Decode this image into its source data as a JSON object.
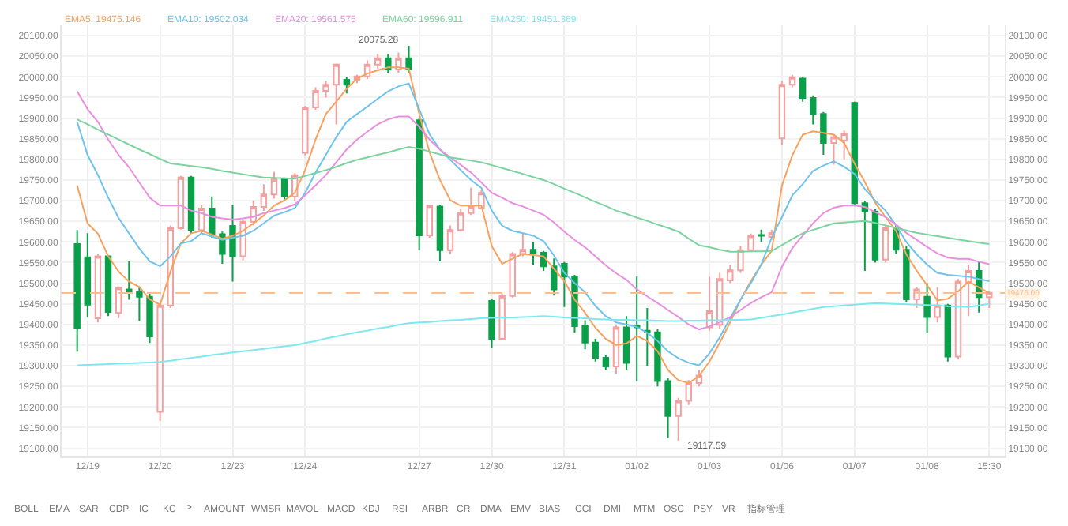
{
  "chart_data": {
    "type": "candlestick",
    "categories": [
      null,
      "12/19",
      null,
      null,
      null,
      null,
      null,
      null,
      "12/20",
      null,
      null,
      null,
      null,
      null,
      null,
      "12/23",
      null,
      null,
      null,
      null,
      null,
      null,
      "12/24",
      null,
      null,
      null,
      null,
      null,
      null,
      null,
      null,
      null,
      null,
      "12/27",
      null,
      null,
      null,
      null,
      null,
      null,
      "12/30",
      null,
      null,
      null,
      null,
      null,
      null,
      "12/31",
      null,
      null,
      null,
      null,
      null,
      null,
      "01/02",
      null,
      null,
      null,
      null,
      null,
      null,
      "01/03",
      null,
      null,
      null,
      null,
      null,
      null,
      "01/06",
      null,
      null,
      null,
      null,
      null,
      null,
      "01/07",
      null,
      null,
      null,
      null,
      null,
      null,
      "01/08",
      null,
      null,
      null,
      null,
      null,
      "15:30"
    ],
    "ohlc": [
      [
        19595,
        19629,
        19334,
        19391
      ],
      [
        19563,
        19621,
        19418,
        19448
      ],
      [
        19415,
        19570,
        19405,
        19565
      ],
      [
        19565,
        19568,
        19420,
        19430
      ],
      [
        19428,
        19492,
        19415,
        19489
      ],
      [
        19485,
        19553,
        19460,
        19477
      ],
      [
        19478,
        19490,
        19408,
        19467
      ],
      [
        19467,
        19475,
        19355,
        19371
      ],
      [
        19188,
        19450,
        19166,
        19446
      ],
      [
        19446,
        19640,
        19440,
        19633
      ],
      [
        19633,
        19760,
        19630,
        19756
      ],
      [
        19756,
        19760,
        19620,
        19629
      ],
      [
        19629,
        19690,
        19620,
        19681
      ],
      [
        19681,
        19710,
        19610,
        19619
      ],
      [
        19619,
        19625,
        19547,
        19571
      ],
      [
        19639,
        19690,
        19504,
        19565
      ],
      [
        19565,
        19655,
        19555,
        19649
      ],
      [
        19649,
        19700,
        19640,
        19685
      ],
      [
        19685,
        19740,
        19675,
        19715
      ],
      [
        19715,
        19770,
        19705,
        19752
      ],
      [
        19752,
        19756,
        19700,
        19710
      ],
      [
        19710,
        19766,
        19700,
        19762
      ],
      [
        19816,
        19930,
        19810,
        19926
      ],
      [
        19926,
        19975,
        19920,
        19966
      ],
      [
        19966,
        19990,
        19950,
        19981
      ],
      [
        19981,
        20032,
        19885,
        20030
      ],
      [
        19993,
        20000,
        19960,
        19981
      ],
      [
        19993,
        20005,
        19985,
        20001
      ],
      [
        20001,
        20040,
        19995,
        20030
      ],
      [
        20030,
        20055,
        20020,
        20045
      ],
      [
        20045,
        20055,
        20010,
        20018
      ],
      [
        20018,
        20059,
        20010,
        20045
      ],
      [
        20045,
        20075.28,
        20010,
        20018
      ],
      [
        19895,
        19900,
        19580,
        19616
      ],
      [
        19616,
        19690,
        19610,
        19688
      ],
      [
        19686,
        19690,
        19553,
        19580
      ],
      [
        19580,
        19640,
        19570,
        19629
      ],
      [
        19629,
        19680,
        19625,
        19670
      ],
      [
        19670,
        19731,
        19665,
        19686
      ],
      [
        19682,
        19725,
        19680,
        19719
      ],
      [
        19457,
        19462,
        19344,
        19365
      ],
      [
        19365,
        19475,
        19362,
        19469
      ],
      [
        19469,
        19575,
        19465,
        19571
      ],
      [
        19571,
        19621,
        19565,
        19581
      ],
      [
        19581,
        19600,
        19545,
        19574
      ],
      [
        19574,
        19578,
        19530,
        19541
      ],
      [
        19541,
        19560,
        19470,
        19485
      ],
      [
        19547,
        19552,
        19442,
        19516
      ],
      [
        19516,
        19520,
        19380,
        19396
      ],
      [
        19396,
        19410,
        19340,
        19356
      ],
      [
        19356,
        19365,
        19310,
        19319
      ],
      [
        19319,
        19325,
        19290,
        19298
      ],
      [
        19298,
        19400,
        19280,
        19393
      ],
      [
        19393,
        19420,
        19290,
        19307
      ],
      [
        19396,
        19516,
        19263,
        19393
      ],
      [
        19385,
        19440,
        19300,
        19381
      ],
      [
        19381,
        19388,
        19250,
        19263
      ],
      [
        19263,
        19270,
        19125,
        19178
      ],
      [
        19178,
        19222,
        19117.59,
        19215
      ],
      [
        19215,
        19265,
        19205,
        19258
      ],
      [
        19258,
        19290,
        19250,
        19276
      ],
      [
        19393,
        19516,
        19385,
        19432
      ],
      [
        19399,
        19525,
        19390,
        19510
      ],
      [
        19507,
        19545,
        19500,
        19531
      ],
      [
        19531,
        19590,
        19525,
        19580
      ],
      [
        19580,
        19620,
        19575,
        19615
      ],
      [
        19617,
        19630,
        19600,
        19615
      ],
      [
        19612,
        19630,
        19605,
        19621
      ],
      [
        19851,
        19990,
        19835,
        19981
      ],
      [
        19981,
        20005,
        19975,
        19999
      ],
      [
        19996,
        20000,
        19940,
        19949
      ],
      [
        19949,
        19955,
        19885,
        19910
      ],
      [
        19910,
        19915,
        19811,
        19840
      ],
      [
        19840,
        19860,
        19787,
        19854
      ],
      [
        19846,
        19870,
        19800,
        19863
      ],
      [
        19937,
        19940,
        19690,
        19694
      ],
      [
        19694,
        19700,
        19530,
        19674
      ],
      [
        19674,
        19680,
        19550,
        19557
      ],
      [
        19557,
        19640,
        19550,
        19633
      ],
      [
        19633,
        19640,
        19570,
        19581
      ],
      [
        19581,
        19590,
        19455,
        19461
      ],
      [
        19461,
        19490,
        19440,
        19485
      ],
      [
        19467,
        19500,
        19380,
        19418
      ],
      [
        19418,
        19490,
        19405,
        19446
      ],
      [
        19446,
        19450,
        19310,
        19322
      ],
      [
        19322,
        19510,
        19315,
        19504
      ],
      [
        19500,
        19545,
        19420,
        19530
      ],
      [
        19530,
        19553,
        19429,
        19466
      ],
      [
        19466,
        19480,
        19440,
        19476
      ]
    ],
    "colors": [
      "#0aa04a",
      "#0aa04a",
      "#f4a0a0",
      "#0aa04a",
      "#f4a0a0",
      "#0aa04a",
      "#0aa04a",
      "#0aa04a",
      "#f4a0a0",
      "#f4a0a0",
      "#f4a0a0",
      "#0aa04a",
      "#f4a0a0",
      "#0aa04a",
      "#0aa04a",
      "#0aa04a",
      "#f4a0a0",
      "#f4a0a0",
      "#f4a0a0",
      "#f4a0a0",
      "#0aa04a",
      "#f4a0a0",
      "#f4a0a0",
      "#f4a0a0",
      "#f4a0a0",
      "#f4a0a0",
      "#0aa04a",
      "#f4a0a0",
      "#f4a0a0",
      "#f4a0a0",
      "#0aa04a",
      "#f4a0a0",
      "#0aa04a",
      "#0aa04a",
      "#f4a0a0",
      "#0aa04a",
      "#f4a0a0",
      "#f4a0a0",
      "#f4a0a0",
      "#f4a0a0",
      "#0aa04a",
      "#f4a0a0",
      "#f4a0a0",
      "#f4a0a0",
      "#0aa04a",
      "#0aa04a",
      "#0aa04a",
      "#0aa04a",
      "#0aa04a",
      "#0aa04a",
      "#0aa04a",
      "#0aa04a",
      "#f4a0a0",
      "#0aa04a",
      "#0aa04a",
      "#0aa04a",
      "#0aa04a",
      "#0aa04a",
      "#f4a0a0",
      "#f4a0a0",
      "#f4a0a0",
      "#f4a0a0",
      "#f4a0a0",
      "#f4a0a0",
      "#f4a0a0",
      "#f4a0a0",
      "#0aa04a",
      "#f4a0a0",
      "#f4a0a0",
      "#f4a0a0",
      "#0aa04a",
      "#0aa04a",
      "#0aa04a",
      "#f4a0a0",
      "#f4a0a0",
      "#0aa04a",
      "#0aa04a",
      "#0aa04a",
      "#f4a0a0",
      "#0aa04a",
      "#0aa04a",
      "#f4a0a0",
      "#0aa04a",
      "#f4a0a0",
      "#0aa04a",
      "#f4a0a0",
      "#f4a0a0",
      "#0aa04a",
      "#f4a0a0"
    ],
    "series": [
      {
        "type": "line",
        "name": "EMA5: 19475.146",
        "color": "#f7a15e",
        "values": [
          19737,
          19645,
          19620,
          19565,
          19528,
          19504,
          19491,
          19461,
          19448,
          19528,
          19596,
          19621,
          19627,
          19618,
          19608,
          19615,
          19627,
          19645,
          19664,
          19688,
          19701,
          19719,
          19774,
          19848,
          19910,
          19940,
          19971,
          19996,
          20008,
          20016,
          20023,
          20023,
          20020,
          19910,
          19817,
          19750,
          19701,
          19688,
          19688,
          19688,
          19590,
          19547,
          19559,
          19571,
          19568,
          19565,
          19535,
          19505,
          19460,
          19428,
          19392,
          19365,
          19350,
          19354,
          19372,
          19360,
          19335,
          19290,
          19265,
          19258,
          19275,
          19310,
          19356,
          19405,
          19460,
          19505,
          19545,
          19578,
          19737,
          19810,
          19860,
          19868,
          19864,
          19860,
          19840,
          19790,
          19745,
          19695,
          19660,
          19627,
          19570,
          19530,
          19495,
          19458,
          19462,
          19480,
          19504,
          19490,
          19476
        ]
      },
      {
        "type": "line",
        "name": "EMA10: 19502.034",
        "color": "#6ec3ea",
        "values": [
          19891,
          19811,
          19762,
          19707,
          19658,
          19621,
          19584,
          19553,
          19541,
          19565,
          19596,
          19602,
          19621,
          19613,
          19605,
          19610,
          19615,
          19627,
          19645,
          19664,
          19672,
          19682,
          19719,
          19768,
          19811,
          19854,
          19891,
          19910,
          19928,
          19947,
          19965,
          19977,
          19984,
          19922,
          19861,
          19824,
          19799,
          19774,
          19750,
          19731,
          19676,
          19639,
          19627,
          19621,
          19615,
          19602,
          19567,
          19525,
          19500,
          19478,
          19445,
          19420,
          19405,
          19400,
          19394,
          19380,
          19360,
          19335,
          19318,
          19307,
          19301,
          19330,
          19369,
          19415,
          19460,
          19500,
          19545,
          19610,
          19660,
          19713,
          19740,
          19772,
          19785,
          19795,
          19782,
          19765,
          19728,
          19700,
          19676,
          19640,
          19600,
          19570,
          19545,
          19525,
          19520,
          19518,
          19516,
          19510,
          19505
        ]
      },
      {
        "type": "line",
        "name": "EMA20: 19561.575",
        "color": "#e88fe0",
        "values": [
          19965,
          19922,
          19891,
          19848,
          19811,
          19781,
          19744,
          19707,
          19688,
          19688,
          19688,
          19676,
          19670,
          19661,
          19657,
          19654,
          19657,
          19661,
          19670,
          19676,
          19682,
          19691,
          19713,
          19737,
          19762,
          19793,
          19824,
          19848,
          19867,
          19885,
          19897,
          19904,
          19904,
          19879,
          19848,
          19824,
          19805,
          19787,
          19768,
          19744,
          19719,
          19707,
          19694,
          19686,
          19676,
          19666,
          19647,
          19625,
          19605,
          19587,
          19565,
          19543,
          19524,
          19508,
          19485,
          19468,
          19452,
          19435,
          19418,
          19400,
          19388,
          19395,
          19405,
          19418,
          19435,
          19452,
          19466,
          19478,
          19540,
          19585,
          19615,
          19645,
          19670,
          19683,
          19688,
          19688,
          19685,
          19672,
          19660,
          19642,
          19622,
          19605,
          19588,
          19572,
          19562,
          19559,
          19559,
          19552,
          19546
        ]
      },
      {
        "type": "line",
        "name": "EMA60: 19596.911",
        "color": "#7dd3a0",
        "values": [
          19897,
          19885,
          19872,
          19860,
          19848,
          19836,
          19824,
          19813,
          19801,
          19790,
          19787,
          19784,
          19781,
          19777,
          19772,
          19768,
          19764,
          19760,
          19756,
          19755,
          19754,
          19753,
          19760,
          19767,
          19774,
          19782,
          19791,
          19799,
          19805,
          19811,
          19817,
          19824,
          19830,
          19826,
          19819,
          19812,
          19805,
          19801,
          19797,
          19793,
          19786,
          19779,
          19772,
          19765,
          19757,
          19750,
          19740,
          19729,
          19719,
          19708,
          19697,
          19687,
          19676,
          19668,
          19659,
          19651,
          19642,
          19634,
          19625,
          19608,
          19592,
          19587,
          19581,
          19576,
          19576,
          19577,
          19577,
          19578,
          19592,
          19607,
          19621,
          19629,
          19637,
          19645,
          19647,
          19649,
          19651,
          19646,
          19640,
          19634,
          19628,
          19622,
          19618,
          19614,
          19610,
          19606,
          19602,
          19598,
          19595
        ]
      },
      {
        "type": "line",
        "name": "EMA250: 19451.369",
        "color": "#7ee8f0",
        "values": [
          19301,
          19302,
          19303,
          19304,
          19305,
          19306,
          19307,
          19308,
          19309,
          19312,
          19316,
          19319,
          19322,
          19326,
          19329,
          19332,
          19335,
          19338,
          19341,
          19344,
          19347,
          19350,
          19355,
          19360,
          19366,
          19371,
          19376,
          19381,
          19385,
          19390,
          19394,
          19399,
          19403,
          19405,
          19406,
          19408,
          19410,
          19411,
          19413,
          19415,
          19416,
          19417,
          19417,
          19418,
          19419,
          19420,
          19419,
          19417,
          19416,
          19415,
          19413,
          19412,
          19411,
          19411,
          19410,
          19410,
          19409,
          19408,
          19408,
          19409,
          19409,
          19410,
          19410,
          19411,
          19411,
          19412,
          19416,
          19420,
          19424,
          19429,
          19433,
          19438,
          19442,
          19444,
          19446,
          19448,
          19450,
          19452,
          19451,
          19450,
          19449,
          19448,
          19447,
          19446,
          19444,
          19443,
          19442,
          19446,
          19450
        ]
      }
    ],
    "ylim": [
      19080,
      20125
    ],
    "yticks": [
      {
        "value": 19100,
        "label": "19100.00"
      },
      {
        "value": 19150,
        "label": "19150.00"
      },
      {
        "value": 19200,
        "label": "19200.00"
      },
      {
        "value": 19250,
        "label": "19250.00"
      },
      {
        "value": 19300,
        "label": "19300.00"
      },
      {
        "value": 19350,
        "label": "19350.00"
      },
      {
        "value": 19400,
        "label": "19400.00"
      },
      {
        "value": 19450,
        "label": "19450.00"
      },
      {
        "value": 19500,
        "label": "19500.00"
      },
      {
        "value": 19550,
        "label": "19550.00"
      },
      {
        "value": 19600,
        "label": "19600.00"
      },
      {
        "value": 19650,
        "label": "19650.00"
      },
      {
        "value": 19700,
        "label": "19700.00"
      },
      {
        "value": 19750,
        "label": "19750.00"
      },
      {
        "value": 19800,
        "label": "19800.00"
      },
      {
        "value": 19850,
        "label": "19850.00"
      },
      {
        "value": 19900,
        "label": "19900.00"
      },
      {
        "value": 19950,
        "label": "19950.00"
      },
      {
        "value": 20000,
        "label": "20000.00"
      },
      {
        "value": 20050,
        "label": "20050.00"
      },
      {
        "value": 20100,
        "label": "20100.00"
      }
    ],
    "y2lim": [
      19080,
      20125
    ],
    "y2ticks": [
      {
        "value": 19100,
        "label": "19100.00"
      },
      {
        "value": 19150,
        "label": "19150.00"
      },
      {
        "value": 19200,
        "label": "19200.00"
      },
      {
        "value": 19250,
        "label": "19250.00"
      },
      {
        "value": 19300,
        "label": "19300.00"
      },
      {
        "value": 19350,
        "label": "19350.00"
      },
      {
        "value": 19400,
        "label": "19400.00"
      },
      {
        "value": 19450,
        "label": "19450.00"
      },
      {
        "value": 19500,
        "label": "19500.00"
      },
      {
        "value": 19550,
        "label": "19550.00"
      },
      {
        "value": 19600,
        "label": "19600.00"
      },
      {
        "value": 19650,
        "label": "19650.00"
      },
      {
        "value": 19700,
        "label": "19700.00"
      },
      {
        "value": 19750,
        "label": "19750.00"
      },
      {
        "value": 19800,
        "label": "19800.00"
      },
      {
        "value": 19850,
        "label": "19850.00"
      },
      {
        "value": 19900,
        "label": "19900.00"
      },
      {
        "value": 19950,
        "label": "19950.00"
      },
      {
        "value": 20000,
        "label": "20000.00"
      },
      {
        "value": 20050,
        "label": "20050.00"
      },
      {
        "value": 20100,
        "label": "20100.00"
      }
    ],
    "ref_lines": [
      {
        "axis": "y",
        "value": 19476,
        "label": "19476.00",
        "color": "#ffbe8c",
        "line_style": "dashed"
      }
    ],
    "annotations": [
      "20075.28",
      "19117.59",
      "BOLL",
      "EMA",
      "SAR",
      "CDP",
      "IC",
      "KC",
      ">",
      "AMOUNT",
      "WMSR",
      "MAVOL",
      "MACD",
      "KDJ",
      "RSI",
      "ARBR",
      "CR",
      "DMA",
      "EMV",
      "BIAS",
      "CCI",
      "DMI",
      "MTM",
      "OSC",
      "PSY",
      "VR",
      "指标管理"
    ],
    "grid": true,
    "legend": "top left"
  }
}
